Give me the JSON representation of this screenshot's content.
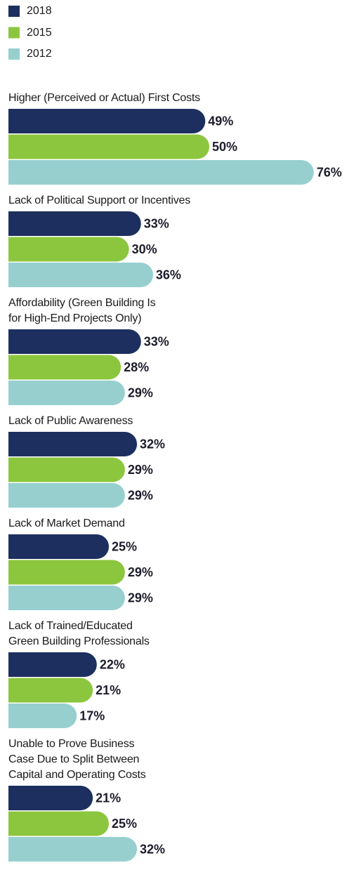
{
  "chart_data": {
    "type": "bar",
    "orientation": "horizontal",
    "categories": [
      "Higher (Perceived or Actual) First Costs",
      "Lack of Political Support or Incentives",
      "Affordability (Green Building Is\nfor High-End Projects Only)",
      "Lack of Public Awareness",
      "Lack of Market Demand",
      "Lack of Trained/Educated\nGreen Building Professionals",
      "Unable to Prove Business\nCase Due to Split Between\nCapital and Operating Costs"
    ],
    "series": [
      {
        "name": "2018",
        "color": "#1c2f5f",
        "values": [
          49,
          33,
          33,
          32,
          25,
          22,
          21
        ],
        "value_labels": [
          "49%",
          "33%",
          "33%",
          "32%",
          "25%",
          "22%",
          "21%"
        ]
      },
      {
        "name": "2015",
        "color": "#8cc63e",
        "values": [
          50,
          30,
          28,
          29,
          29,
          21,
          25
        ],
        "value_labels": [
          "50%",
          "30%",
          "28%",
          "29%",
          "29%",
          "21%",
          "25%"
        ]
      },
      {
        "name": "2012",
        "color": "#97cfcf",
        "values": [
          76,
          36,
          29,
          29,
          29,
          17,
          32
        ],
        "value_labels": [
          "76%",
          "36%",
          "29%",
          "29%",
          "29%",
          "17%",
          "32%"
        ]
      }
    ],
    "legend": "top-left"
  }
}
